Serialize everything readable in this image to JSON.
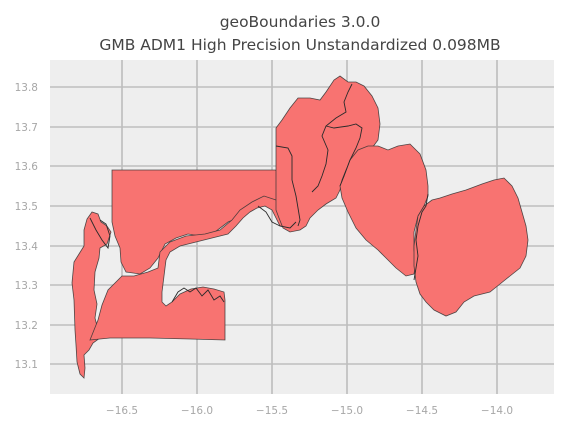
{
  "figure": {
    "title_line1": "geoBoundaries 3.0.0",
    "title_line2": "GMB ADM1 High Precision Unstandardized 0.098MB"
  },
  "map": {
    "x_ticks": [
      "−16.5",
      "−16.0",
      "−15.5",
      "−15.0",
      "−14.5",
      "−14.0"
    ],
    "y_ticks": [
      "13.8",
      "13.7",
      "13.6",
      "13.5",
      "13.4",
      "13.3",
      "13.2",
      "13.1"
    ],
    "x_range": [
      -16.9,
      -13.7
    ],
    "y_range": [
      13.02,
      13.86
    ],
    "fill_color": "#f87371",
    "edge_color": "#333333",
    "background_color": "#eeeeee",
    "grid": true,
    "regions": 6
  }
}
